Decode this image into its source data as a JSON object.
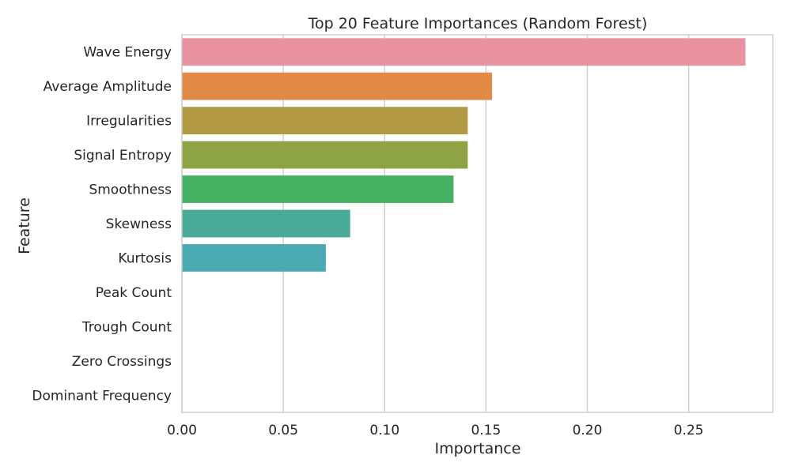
{
  "chart_data": {
    "type": "bar",
    "orientation": "horizontal",
    "title": "Top 20 Feature Importances (Random Forest)",
    "xlabel": "Importance",
    "ylabel": "Feature",
    "xlim": [
      0,
      0.2915
    ],
    "xticks": [
      "0.00",
      "0.05",
      "0.10",
      "0.15",
      "0.20",
      "0.25"
    ],
    "xtick_values": [
      0,
      0.05,
      0.1,
      0.15,
      0.2,
      0.25
    ],
    "grid": true,
    "legend": "none",
    "categories": [
      "Wave Energy",
      "Average Amplitude",
      "Irregularities",
      "Signal Entropy",
      "Smoothness",
      "Skewness",
      "Kurtosis",
      "Peak Count",
      "Trough Count",
      "Zero Crossings",
      "Dominant Frequency"
    ],
    "values": [
      0.278,
      0.153,
      0.141,
      0.141,
      0.134,
      0.083,
      0.071,
      0.0,
      0.0,
      0.0,
      0.0
    ],
    "colors": [
      "#e8919f",
      "#e08a45",
      "#b39a44",
      "#8ea444",
      "#47b163",
      "#49ab97",
      "#4babb3",
      "#56a9dd",
      "#a2a6ef",
      "#e17de8",
      "#e88ccb"
    ]
  }
}
